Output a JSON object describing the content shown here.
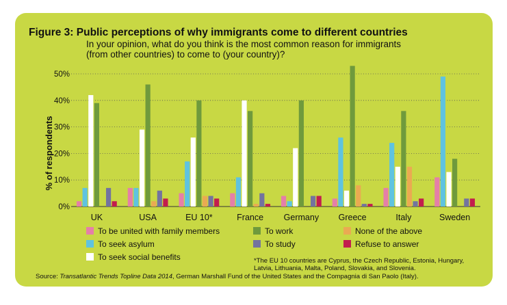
{
  "figure": {
    "title": "Figure 3:  Public perceptions of why immigrants come to different countries",
    "subtitle": "In your opinion, what do you think is the most common reason for immigrants (from other countries) to come to (your country)?",
    "footnote": "*The EU 10 countries are Cyprus, the Czech Republic, Estonia, Hungary, Latvia, Lithuania, Malta, Poland, Slovakia, and Slovenia.",
    "source_prefix": "Source: ",
    "source_title": "Transatlantic Trends Topline Data 2014",
    "source_rest": ", German Marshall Fund of the United States and the Compagnia di San Paolo (Italy).",
    "background_color": "#c8d844"
  },
  "chart_data": {
    "type": "bar",
    "ylabel": "% of respondents",
    "ylim": [
      0,
      50
    ],
    "yticks": [
      "0%",
      "10%",
      "20%",
      "30%",
      "40%",
      "50%"
    ],
    "grid": true,
    "legend_position": "bottom",
    "categories": [
      "UK",
      "USA",
      "EU 10*",
      "France",
      "Germany",
      "Greece",
      "Italy",
      "Sweden"
    ],
    "series": [
      {
        "name": "To be united with family members",
        "color": "#e57fa8",
        "values": [
          2,
          7,
          5,
          5,
          4,
          3,
          7,
          11
        ]
      },
      {
        "name": "To seek asylum",
        "color": "#5fc3e0",
        "values": [
          7,
          7,
          17,
          11,
          2,
          26,
          24,
          49
        ]
      },
      {
        "name": "To seek social benefits",
        "color": "#ffffff",
        "values": [
          42,
          29,
          26,
          40,
          22,
          6,
          15,
          13
        ]
      },
      {
        "name": "To work",
        "color": "#6f9a3c",
        "values": [
          39,
          46,
          40,
          36,
          40,
          53,
          36,
          18
        ]
      },
      {
        "name": "None of the above",
        "color": "#eaaa52",
        "values": [
          0,
          2,
          4,
          1,
          0,
          8,
          15,
          0
        ]
      },
      {
        "name": "To study",
        "color": "#73739f",
        "values": [
          7,
          6,
          4,
          5,
          4,
          1,
          2,
          3
        ]
      },
      {
        "name": "Refuse to answer",
        "color": "#c21d4e",
        "values": [
          2,
          3,
          3,
          1,
          4,
          1,
          3,
          3
        ]
      }
    ]
  }
}
